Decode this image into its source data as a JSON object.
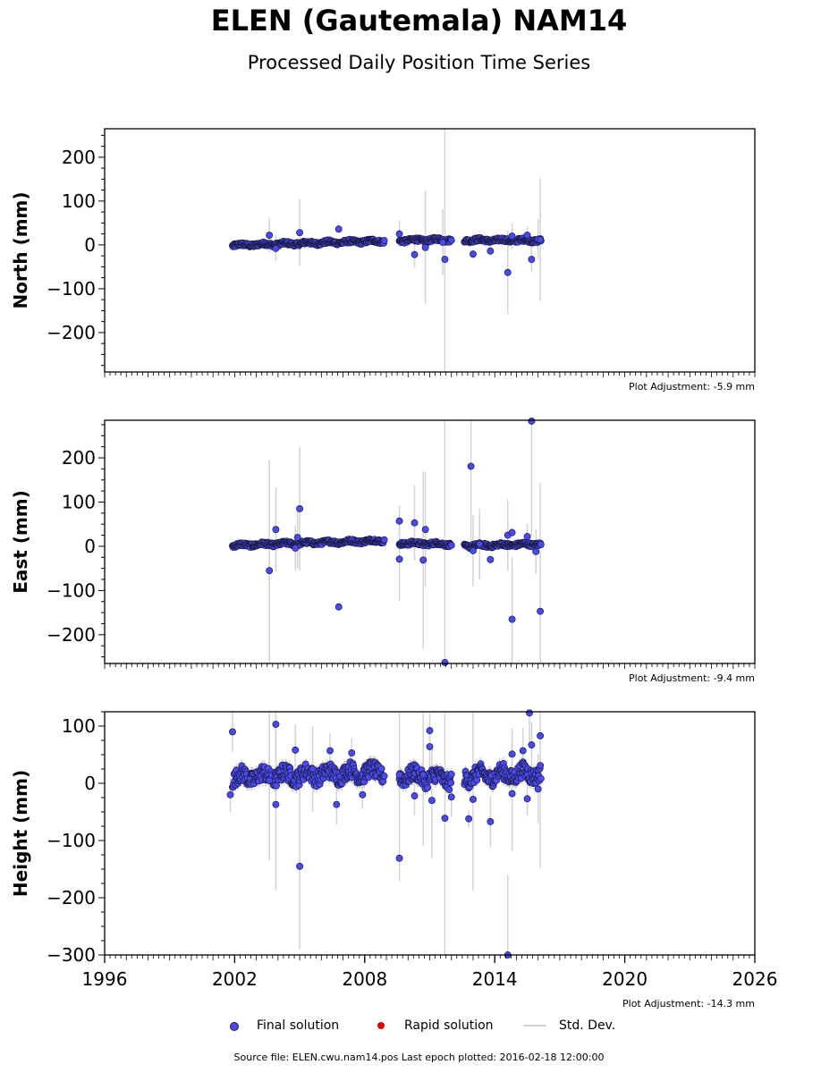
{
  "header": {
    "title": "ELEN (Gautemala) NAM14",
    "subtitle": "Processed Daily Position Time Series"
  },
  "legend": {
    "final": "Final solution",
    "rapid": "Rapid solution",
    "stddev": "Std. Dev."
  },
  "footer": {
    "text": "Source file: ELEN.cwu.nam14.pos  Last epoch plotted: 2016-02-18 12:00:00"
  },
  "colors": {
    "final": "#4a4af0",
    "rapid": "#e00000",
    "stddev": "#d3d3d3"
  },
  "chart_data": [
    {
      "type": "scatter",
      "ylabel": "North (mm)",
      "adjustment": "Plot Adjustment: -5.9 mm",
      "xlim": [
        1996,
        2026
      ],
      "ylim": [
        -290,
        265
      ],
      "yticks": [
        -200,
        -100,
        0,
        100,
        200
      ],
      "xticks": [],
      "segments": [
        {
          "x0": 2001.9,
          "x1": 2008.9,
          "y0": -1,
          "y1": 9,
          "amp": 4
        },
        {
          "x0": 2009.6,
          "x1": 2012.0,
          "y0": 10,
          "y1": 12,
          "amp": 4
        },
        {
          "x0": 2012.6,
          "x1": 2016.13,
          "y0": 11,
          "y1": 10,
          "amp": 4
        }
      ],
      "outliers": [
        {
          "x": 2003.6,
          "y": 22,
          "e": 40
        },
        {
          "x": 2005.0,
          "y": 28,
          "e": 76
        },
        {
          "x": 2006.8,
          "y": 36,
          "e": 10
        },
        {
          "x": 2003.9,
          "y": -8,
          "e": 30
        },
        {
          "x": 2009.6,
          "y": 25,
          "e": 30
        },
        {
          "x": 2010.3,
          "y": -22,
          "e": 30
        },
        {
          "x": 2010.8,
          "y": -6,
          "e": 130
        },
        {
          "x": 2011.7,
          "y": -33,
          "e": 300
        },
        {
          "x": 2011.6,
          "y": 6,
          "e": 75
        },
        {
          "x": 2013.0,
          "y": -21,
          "e": 10
        },
        {
          "x": 2013.8,
          "y": -14,
          "e": 10
        },
        {
          "x": 2014.6,
          "y": -63,
          "e": 95
        },
        {
          "x": 2014.8,
          "y": 20,
          "e": 30
        },
        {
          "x": 2015.7,
          "y": -33,
          "e": 30
        },
        {
          "x": 2016.0,
          "y": 13,
          "e": 45
        },
        {
          "x": 2016.1,
          "y": 12,
          "e": 140
        },
        {
          "x": 2015.5,
          "y": 22,
          "e": 20
        }
      ]
    },
    {
      "type": "scatter",
      "ylabel": "East (mm)",
      "adjustment": "Plot Adjustment: -9.4 mm",
      "xlim": [
        1996,
        2026
      ],
      "ylim": [
        -265,
        285
      ],
      "yticks": [
        -200,
        -100,
        0,
        100,
        200
      ],
      "xticks": [],
      "segments": [
        {
          "x0": 2001.9,
          "x1": 2008.9,
          "y0": 2,
          "y1": 13,
          "amp": 4
        },
        {
          "x0": 2009.6,
          "x1": 2012.0,
          "y0": 7,
          "y1": 5,
          "amp": 4
        },
        {
          "x0": 2012.6,
          "x1": 2016.13,
          "y0": 1,
          "y1": 5,
          "amp": 4
        }
      ],
      "outliers": [
        {
          "x": 2003.6,
          "y": -55,
          "e": 250
        },
        {
          "x": 2003.9,
          "y": 38,
          "e": 95
        },
        {
          "x": 2004.9,
          "y": 20,
          "e": 70
        },
        {
          "x": 2005.0,
          "y": 85,
          "e": 140
        },
        {
          "x": 2004.8,
          "y": -4,
          "e": 50
        },
        {
          "x": 2006.8,
          "y": -137,
          "e": 10
        },
        {
          "x": 2009.6,
          "y": 57,
          "e": 35
        },
        {
          "x": 2009.6,
          "y": -29,
          "e": 95
        },
        {
          "x": 2010.3,
          "y": 53,
          "e": 85
        },
        {
          "x": 2010.8,
          "y": 38,
          "e": 130
        },
        {
          "x": 2010.7,
          "y": -31,
          "e": 200
        },
        {
          "x": 2011.7,
          "y": -263,
          "e": 550
        },
        {
          "x": 2012.9,
          "y": 181,
          "e": 175
        },
        {
          "x": 2013.0,
          "y": -10,
          "e": 80
        },
        {
          "x": 2013.3,
          "y": 5,
          "e": 80
        },
        {
          "x": 2013.8,
          "y": -30,
          "e": 10
        },
        {
          "x": 2014.6,
          "y": 25,
          "e": 80
        },
        {
          "x": 2014.8,
          "y": 31,
          "e": 10
        },
        {
          "x": 2014.8,
          "y": -165,
          "e": 140
        },
        {
          "x": 2015.5,
          "y": 22,
          "e": 30
        },
        {
          "x": 2015.7,
          "y": 283,
          "e": 260
        },
        {
          "x": 2015.9,
          "y": -12,
          "e": 50
        },
        {
          "x": 2016.1,
          "y": -147,
          "e": 290
        }
      ]
    },
    {
      "type": "scatter",
      "ylabel": "Height (mm)",
      "adjustment": "Plot Adjustment: -14.3 mm",
      "xlim": [
        1996,
        2026
      ],
      "ylim": [
        -300,
        125
      ],
      "yticks": [
        -300,
        -200,
        -100,
        0,
        100
      ],
      "xticks": [
        1996,
        2002,
        2008,
        2014,
        2020,
        2026
      ],
      "segments": [
        {
          "x0": 2001.9,
          "x1": 2008.9,
          "y0": 10,
          "y1": 20,
          "amp": 14
        },
        {
          "x0": 2009.6,
          "x1": 2012.0,
          "y0": 15,
          "y1": 8,
          "amp": 14
        },
        {
          "x0": 2012.6,
          "x1": 2016.13,
          "y0": 12,
          "y1": 18,
          "amp": 14
        }
      ],
      "outliers": [
        {
          "x": 2001.9,
          "y": 90,
          "e": 35
        },
        {
          "x": 2001.8,
          "y": -20,
          "e": 30
        },
        {
          "x": 2003.6,
          "y": 5,
          "e": 140
        },
        {
          "x": 2003.9,
          "y": 103,
          "e": 60
        },
        {
          "x": 2003.9,
          "y": -37,
          "e": 150
        },
        {
          "x": 2004.8,
          "y": 58,
          "e": 45
        },
        {
          "x": 2005.0,
          "y": -145,
          "e": 145
        },
        {
          "x": 2005.6,
          "y": 25,
          "e": 75
        },
        {
          "x": 2006.7,
          "y": -37,
          "e": 35
        },
        {
          "x": 2006.4,
          "y": 57,
          "e": 30
        },
        {
          "x": 2007.4,
          "y": 53,
          "e": 25
        },
        {
          "x": 2007.9,
          "y": -20,
          "e": 25
        },
        {
          "x": 2009.6,
          "y": -131,
          "e": 40
        },
        {
          "x": 2009.6,
          "y": 15,
          "e": 110
        },
        {
          "x": 2010.3,
          "y": -22,
          "e": 35
        },
        {
          "x": 2010.7,
          "y": 15,
          "e": 125
        },
        {
          "x": 2011.0,
          "y": 92,
          "e": 30
        },
        {
          "x": 2011.0,
          "y": 64,
          "e": 40
        },
        {
          "x": 2011.1,
          "y": -30,
          "e": 100
        },
        {
          "x": 2011.7,
          "y": -61,
          "e": 420
        },
        {
          "x": 2012.0,
          "y": -24,
          "e": 35
        },
        {
          "x": 2012.8,
          "y": -62,
          "e": 15
        },
        {
          "x": 2013.0,
          "y": -28,
          "e": 160
        },
        {
          "x": 2013.8,
          "y": -67,
          "e": 45
        },
        {
          "x": 2014.6,
          "y": -300,
          "e": 140
        },
        {
          "x": 2014.8,
          "y": 51,
          "e": 45
        },
        {
          "x": 2014.8,
          "y": -18,
          "e": 100
        },
        {
          "x": 2015.3,
          "y": 57,
          "e": 40
        },
        {
          "x": 2015.6,
          "y": 123,
          "e": 60
        },
        {
          "x": 2015.7,
          "y": 67,
          "e": 40
        },
        {
          "x": 2015.5,
          "y": -27,
          "e": 30
        },
        {
          "x": 2016.1,
          "y": 83,
          "e": 230
        },
        {
          "x": 2016.0,
          "y": -10,
          "e": 60
        }
      ]
    }
  ]
}
